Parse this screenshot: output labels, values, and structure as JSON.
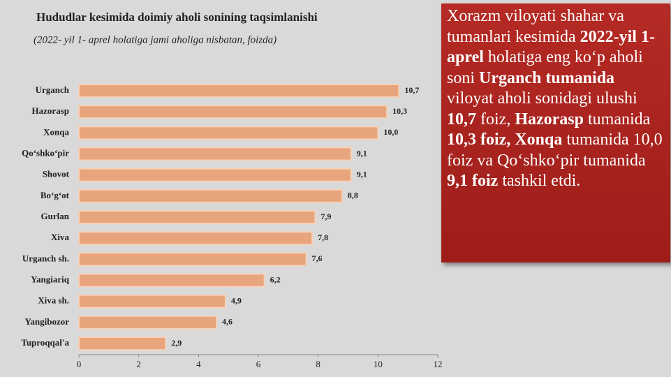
{
  "chart_data": {
    "type": "bar",
    "orientation": "horizontal",
    "title": "Hududlar kesimida doimiy aholi sonining taqsimlanishi",
    "subtitle": "(2022-  yil 1- aprel  holatiga  jami aholiga nisbatan, foizda)",
    "categories": [
      "Urganch",
      "Hazorasp",
      "Xonqa",
      "Qo‘shko‘pir",
      "Shovot",
      "Bo‘g‘ot",
      "Gurlan",
      "Xiva",
      "Urganch sh.",
      "Yangiariq",
      "Xiva sh.",
      "Yangibozor",
      "Tuproqqal'a"
    ],
    "values": [
      10.7,
      10.3,
      10.0,
      9.1,
      9.1,
      8.8,
      7.9,
      7.8,
      7.6,
      6.2,
      4.9,
      4.6,
      2.9
    ],
    "value_labels": [
      "10,7",
      "10,3",
      "10,0",
      "9,1",
      "9,1",
      "8,8",
      "7,9",
      "7,8",
      "7,6",
      "6,2",
      "4,9",
      "4,6",
      "2,9"
    ],
    "color": "#e8a47c",
    "xlim": [
      0,
      12
    ],
    "xticks": [
      0,
      2,
      4,
      6,
      8,
      10,
      12
    ]
  },
  "text_box": {
    "runs": [
      {
        "text": "Xorazm viloyati shahar va tumanlari kesimida ",
        "bold": false
      },
      {
        "text": "2022-yil 1- aprel",
        "bold": true
      },
      {
        "text": " holatiga eng ko‘p aholi soni ",
        "bold": false
      },
      {
        "text": "Urganch tumanida",
        "bold": true
      },
      {
        "text": " viloyat aholi sonidagi ulushi ",
        "bold": false
      },
      {
        "text": "10,7",
        "bold": true
      },
      {
        "text": " foiz, ",
        "bold": false
      },
      {
        "text": "Hazorasp",
        "bold": true
      },
      {
        "text": " tumanida ",
        "bold": false
      },
      {
        "text": "10,3 foiz, Xonqa",
        "bold": true
      },
      {
        "text": " tumanida 10,0 foiz va Qo‘shko‘pir tumanida ",
        "bold": false
      },
      {
        "text": "9,1 foiz",
        "bold": true
      },
      {
        "text": " tashkil etdi.",
        "bold": false
      }
    ]
  }
}
